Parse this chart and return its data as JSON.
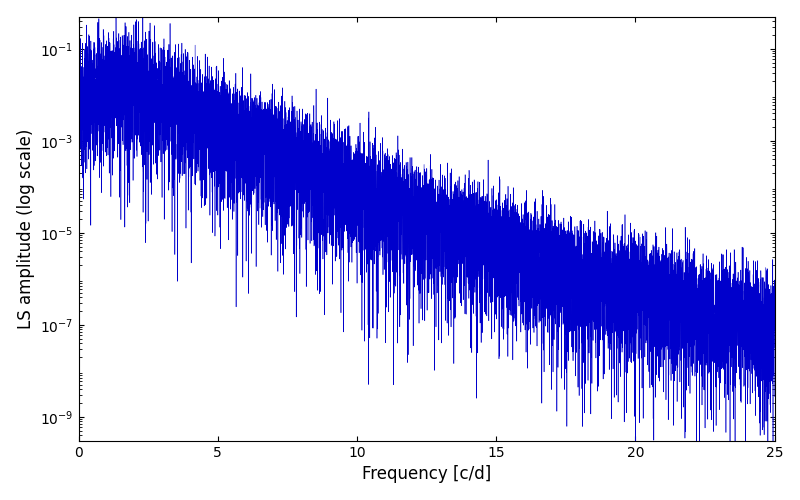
{
  "xlabel": "Frequency [c/d]",
  "ylabel": "LS amplitude (log scale)",
  "xlim": [
    0,
    25
  ],
  "ymin": 3e-10,
  "ymax": 0.5,
  "line_color": "#0000cc",
  "line_width": 0.4,
  "figsize": [
    8.0,
    5.0
  ],
  "dpi": 100,
  "background_color": "#ffffff",
  "ytick_values": [
    1e-09,
    1e-07,
    1e-05,
    0.001,
    0.1
  ],
  "xtick_values": [
    0,
    5,
    10,
    15,
    20,
    25
  ],
  "seed": 777,
  "n_points": 8000
}
